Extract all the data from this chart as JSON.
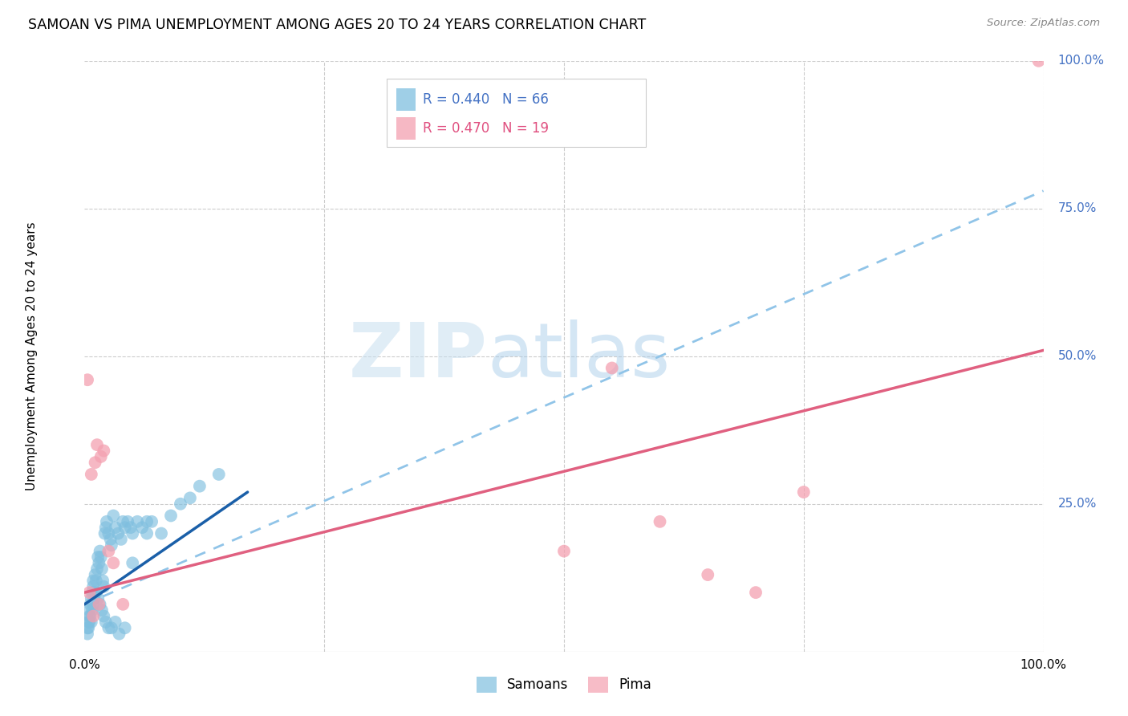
{
  "title": "SAMOAN VS PIMA UNEMPLOYMENT AMONG AGES 20 TO 24 YEARS CORRELATION CHART",
  "source": "Source: ZipAtlas.com",
  "ylabel": "Unemployment Among Ages 20 to 24 years",
  "xlim": [
    0,
    1
  ],
  "ylim": [
    0,
    1
  ],
  "xtick_labels": [
    "0.0%",
    "100.0%"
  ],
  "ytick_labels": [
    "25.0%",
    "50.0%",
    "75.0%",
    "100.0%"
  ],
  "ytick_positions": [
    0.25,
    0.5,
    0.75,
    1.0
  ],
  "legend_samoans_r": "R = 0.440",
  "legend_samoans_n": "N = 66",
  "legend_pima_r": "R = 0.470",
  "legend_pima_n": "N = 19",
  "blue_color": "#7fbfdf",
  "pink_color": "#f4a0b0",
  "trend_blue_solid_color": "#1a5fa8",
  "trend_pink_solid_color": "#e06080",
  "trend_blue_dashed_color": "#90c4e8",
  "watermark_zip": "ZIP",
  "watermark_atlas": "atlas",
  "blue_r_color": "#4472c4",
  "pink_r_color": "#e05080",
  "samoans_x": [
    0.003,
    0.004,
    0.005,
    0.005,
    0.006,
    0.007,
    0.008,
    0.009,
    0.009,
    0.01,
    0.011,
    0.012,
    0.013,
    0.014,
    0.015,
    0.016,
    0.017,
    0.018,
    0.019,
    0.02,
    0.021,
    0.022,
    0.023,
    0.025,
    0.027,
    0.028,
    0.03,
    0.032,
    0.035,
    0.038,
    0.04,
    0.042,
    0.045,
    0.048,
    0.05,
    0.055,
    0.06,
    0.065,
    0.07,
    0.08,
    0.09,
    0.1,
    0.11,
    0.12,
    0.14,
    0.003,
    0.004,
    0.005,
    0.006,
    0.007,
    0.008,
    0.009,
    0.01,
    0.012,
    0.014,
    0.016,
    0.018,
    0.02,
    0.022,
    0.025,
    0.028,
    0.032,
    0.036,
    0.042,
    0.05,
    0.065
  ],
  "samoans_y": [
    0.04,
    0.05,
    0.07,
    0.06,
    0.08,
    0.09,
    0.1,
    0.11,
    0.12,
    0.1,
    0.13,
    0.12,
    0.14,
    0.16,
    0.15,
    0.17,
    0.16,
    0.14,
    0.12,
    0.11,
    0.2,
    0.21,
    0.22,
    0.2,
    0.19,
    0.18,
    0.23,
    0.21,
    0.2,
    0.19,
    0.22,
    0.21,
    0.22,
    0.21,
    0.2,
    0.22,
    0.21,
    0.2,
    0.22,
    0.2,
    0.23,
    0.25,
    0.26,
    0.28,
    0.3,
    0.03,
    0.04,
    0.05,
    0.06,
    0.05,
    0.07,
    0.08,
    0.09,
    0.1,
    0.09,
    0.08,
    0.07,
    0.06,
    0.05,
    0.04,
    0.04,
    0.05,
    0.03,
    0.04,
    0.15,
    0.22
  ],
  "pima_x": [
    0.003,
    0.005,
    0.007,
    0.009,
    0.011,
    0.013,
    0.015,
    0.017,
    0.02,
    0.025,
    0.03,
    0.04,
    0.5,
    0.6,
    0.65,
    0.7,
    0.75,
    0.995,
    0.55
  ],
  "pima_y": [
    0.46,
    0.1,
    0.3,
    0.06,
    0.32,
    0.35,
    0.08,
    0.33,
    0.34,
    0.17,
    0.15,
    0.08,
    0.17,
    0.22,
    0.13,
    0.1,
    0.27,
    1.0,
    0.48
  ],
  "blue_line_x0": 0.0,
  "blue_line_y0": 0.08,
  "blue_line_x1": 0.17,
  "blue_line_y1": 0.27,
  "dashed_line_x0": 0.0,
  "dashed_line_y0": 0.08,
  "dashed_line_x1": 1.0,
  "dashed_line_y1": 0.78,
  "pink_line_x0": 0.0,
  "pink_line_y0": 0.1,
  "pink_line_x1": 1.0,
  "pink_line_y1": 0.51
}
